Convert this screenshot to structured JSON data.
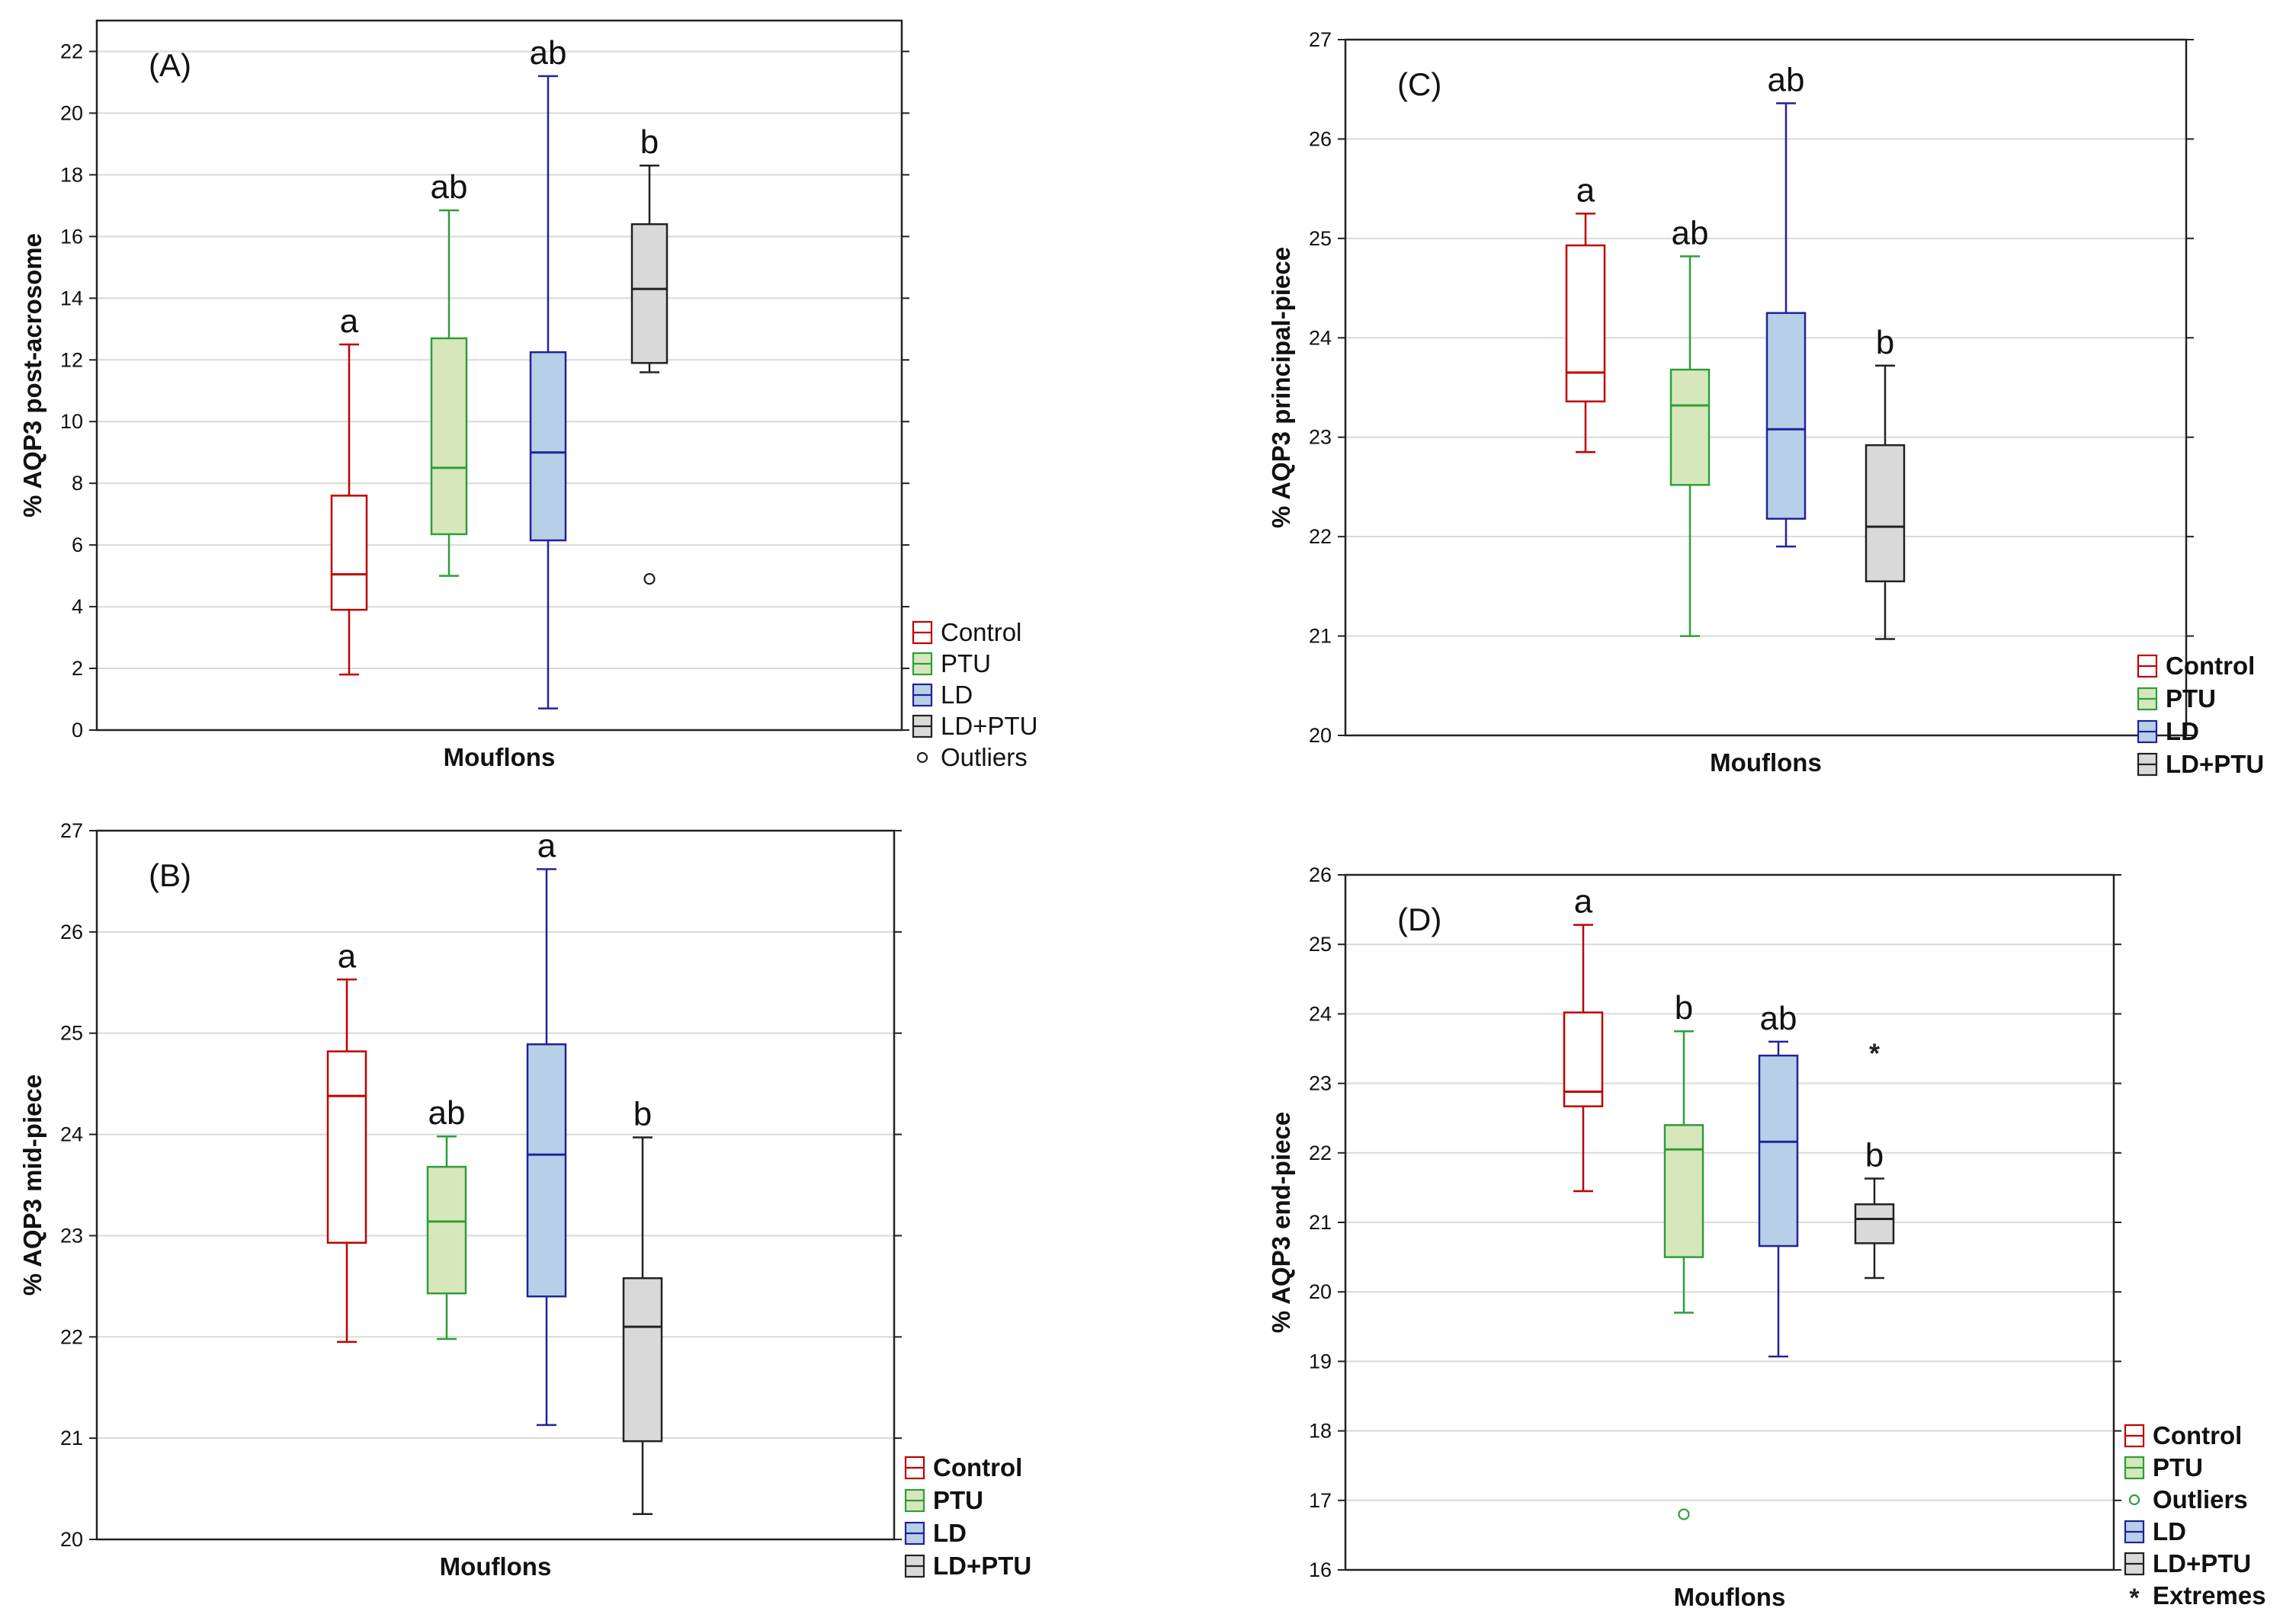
{
  "colors": {
    "Control": {
      "stroke": "#c00000",
      "fill": "#ffffff"
    },
    "PTU": {
      "stroke": "#2e9e3a",
      "fill": "#d7e7bc"
    },
    "LD": {
      "stroke": "#22229a",
      "fill": "#b7d0e8"
    },
    "LD+PTU": {
      "stroke": "#222222",
      "fill": "#d9d9d9"
    },
    "outlier_a": "#222222",
    "outlier_green": "#2e9e3a"
  },
  "chart_data": [
    {
      "type": "box",
      "panel": "(A)",
      "ylabel": "% AQP3 post-acrosome",
      "xlabel": "Mouflons",
      "ylim": [
        0,
        23
      ],
      "yticks": [
        0,
        2,
        4,
        6,
        8,
        10,
        12,
        14,
        16,
        18,
        20,
        22
      ],
      "bold_legend": false,
      "legend": [
        "Control",
        "PTU",
        "LD",
        "LD+PTU",
        "Outliers"
      ],
      "groups": [
        {
          "name": "Control",
          "min": 1.8,
          "q1": 3.9,
          "median": 5.05,
          "q3": 7.6,
          "max": 12.5,
          "letter": "a",
          "outliers": [],
          "extremes": []
        },
        {
          "name": "PTU",
          "min": 5.0,
          "q1": 6.35,
          "median": 8.5,
          "q3": 12.7,
          "max": 16.85,
          "letter": "ab",
          "outliers": [],
          "extremes": []
        },
        {
          "name": "LD",
          "min": 0.7,
          "q1": 6.15,
          "median": 9.0,
          "q3": 12.25,
          "max": 21.2,
          "letter": "ab",
          "outliers": [],
          "extremes": []
        },
        {
          "name": "LD+PTU",
          "min": 11.6,
          "q1": 11.9,
          "median": 14.3,
          "q3": 16.4,
          "max": 18.3,
          "letter": "b",
          "outliers": [
            4.9
          ],
          "extremes": []
        }
      ]
    },
    {
      "type": "box",
      "panel": "(B)",
      "ylabel": "% AQP3 mid-piece",
      "xlabel": "Mouflons",
      "ylim": [
        20,
        27
      ],
      "yticks": [
        20,
        21,
        22,
        23,
        24,
        25,
        26,
        27
      ],
      "bold_legend": true,
      "legend": [
        "Control",
        "PTU",
        "LD",
        "LD+PTU"
      ],
      "groups": [
        {
          "name": "Control",
          "min": 21.95,
          "q1": 22.93,
          "median": 24.38,
          "q3": 24.82,
          "max": 25.53,
          "letter": "a",
          "outliers": [],
          "extremes": []
        },
        {
          "name": "PTU",
          "min": 21.98,
          "q1": 22.43,
          "median": 23.14,
          "q3": 23.68,
          "max": 23.98,
          "letter": "ab",
          "outliers": [],
          "extremes": []
        },
        {
          "name": "LD",
          "min": 21.13,
          "q1": 22.4,
          "median": 23.8,
          "q3": 24.89,
          "max": 26.62,
          "letter": "a",
          "outliers": [],
          "extremes": []
        },
        {
          "name": "LD+PTU",
          "min": 20.25,
          "q1": 20.97,
          "median": 22.1,
          "q3": 22.58,
          "max": 23.97,
          "letter": "b",
          "outliers": [],
          "extremes": []
        }
      ]
    },
    {
      "type": "box",
      "panel": "(C)",
      "ylabel": "% AQP3 principal-piece",
      "xlabel": "Mouflons",
      "ylim": [
        20,
        27
      ],
      "yticks": [
        20,
        21,
        22,
        23,
        24,
        25,
        26,
        27
      ],
      "bold_legend": true,
      "legend": [
        "Control",
        "PTU",
        "LD",
        "LD+PTU"
      ],
      "groups": [
        {
          "name": "Control",
          "min": 22.85,
          "q1": 23.36,
          "median": 23.65,
          "q3": 24.93,
          "max": 25.25,
          "letter": "a",
          "outliers": [],
          "extremes": []
        },
        {
          "name": "PTU",
          "min": 21.0,
          "q1": 22.52,
          "median": 23.32,
          "q3": 23.68,
          "max": 24.82,
          "letter": "ab",
          "outliers": [],
          "extremes": []
        },
        {
          "name": "LD",
          "min": 21.9,
          "q1": 22.18,
          "median": 23.08,
          "q3": 24.25,
          "max": 26.36,
          "letter": "ab",
          "outliers": [],
          "extremes": []
        },
        {
          "name": "LD+PTU",
          "min": 20.97,
          "q1": 21.55,
          "median": 22.1,
          "q3": 22.92,
          "max": 23.72,
          "letter": "b",
          "outliers": [],
          "extremes": []
        }
      ]
    },
    {
      "type": "box",
      "panel": "(D)",
      "ylabel": "% AQP3 end-piece",
      "xlabel": "Mouflons",
      "ylim": [
        16,
        26
      ],
      "yticks": [
        16,
        17,
        18,
        19,
        20,
        21,
        22,
        23,
        24,
        25,
        26
      ],
      "bold_legend": true,
      "legend": [
        "Control",
        "PTU",
        "Outliers",
        "LD",
        "LD+PTU",
        "Extremes"
      ],
      "groups": [
        {
          "name": "Control",
          "min": 21.45,
          "q1": 22.67,
          "median": 22.88,
          "q3": 24.02,
          "max": 25.28,
          "letter": "a",
          "outliers": [],
          "extremes": []
        },
        {
          "name": "PTU",
          "min": 19.7,
          "q1": 20.5,
          "median": 22.05,
          "q3": 22.4,
          "max": 23.75,
          "letter": "b",
          "outliers": [
            16.8
          ],
          "extremes": []
        },
        {
          "name": "LD",
          "min": 19.07,
          "q1": 20.66,
          "median": 22.16,
          "q3": 23.4,
          "max": 23.6,
          "letter": "ab",
          "outliers": [],
          "extremes": []
        },
        {
          "name": "LD+PTU",
          "min": 20.2,
          "q1": 20.7,
          "median": 21.05,
          "q3": 21.26,
          "max": 21.63,
          "letter": "b",
          "outliers": [],
          "extremes": [
            23.45
          ]
        }
      ]
    }
  ]
}
